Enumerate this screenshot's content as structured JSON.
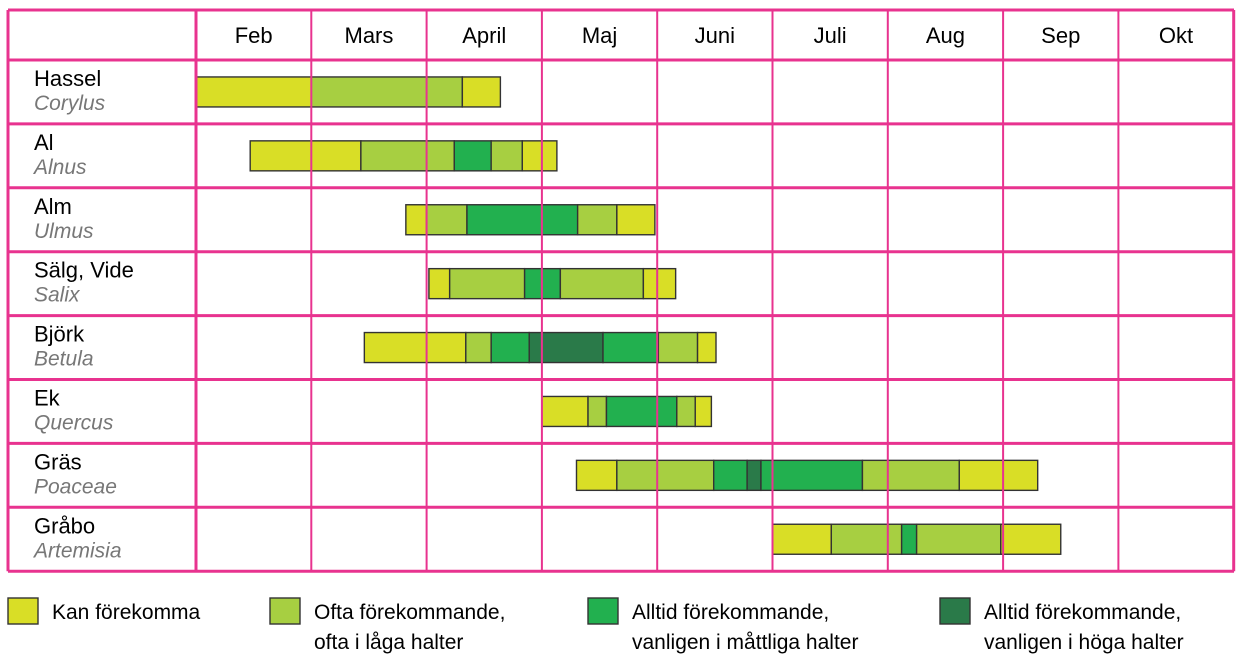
{
  "chart_data": {
    "type": "gantt",
    "months": [
      "Feb",
      "Mars",
      "April",
      "Maj",
      "Juni",
      "Juli",
      "Aug",
      "Sep",
      "Okt"
    ],
    "levels": [
      {
        "id": "kan",
        "label_lines": [
          "Kan förekomma"
        ],
        "color": "#d9de26"
      },
      {
        "id": "ofta",
        "label_lines": [
          "Ofta förekommande,",
          "ofta i låga halter"
        ],
        "color": "#a7cf41"
      },
      {
        "id": "alltid",
        "label_lines": [
          "Alltid förekommande,",
          "vanligen i måttliga halter"
        ],
        "color": "#22b04f"
      },
      {
        "id": "hoga",
        "label_lines": [
          "Alltid förekommande,",
          "vanligen i höga halter"
        ],
        "color": "#2a7a49"
      }
    ],
    "rows": [
      {
        "name": "Hassel",
        "latin": "Corylus",
        "segments": [
          {
            "start": 0.0,
            "end": 1.0,
            "level": "kan"
          },
          {
            "start": 1.0,
            "end": 2.31,
            "level": "ofta"
          },
          {
            "start": 2.31,
            "end": 2.64,
            "level": "kan"
          }
        ]
      },
      {
        "name": "Al",
        "latin": "Alnus",
        "segments": [
          {
            "start": 0.47,
            "end": 1.43,
            "level": "kan"
          },
          {
            "start": 1.43,
            "end": 2.24,
            "level": "ofta"
          },
          {
            "start": 2.24,
            "end": 2.56,
            "level": "alltid"
          },
          {
            "start": 2.56,
            "end": 2.83,
            "level": "ofta"
          },
          {
            "start": 2.83,
            "end": 3.13,
            "level": "kan"
          }
        ]
      },
      {
        "name": "Alm",
        "latin": "Ulmus",
        "segments": [
          {
            "start": 1.82,
            "end": 2.0,
            "level": "kan"
          },
          {
            "start": 2.0,
            "end": 2.35,
            "level": "ofta"
          },
          {
            "start": 2.35,
            "end": 3.31,
            "level": "alltid"
          },
          {
            "start": 3.31,
            "end": 3.65,
            "level": "ofta"
          },
          {
            "start": 3.65,
            "end": 3.98,
            "level": "kan"
          }
        ]
      },
      {
        "name": "Sälg, Vide",
        "latin": "Salix",
        "segments": [
          {
            "start": 2.02,
            "end": 2.2,
            "level": "kan"
          },
          {
            "start": 2.2,
            "end": 2.85,
            "level": "ofta"
          },
          {
            "start": 2.85,
            "end": 3.16,
            "level": "alltid"
          },
          {
            "start": 3.16,
            "end": 3.88,
            "level": "ofta"
          },
          {
            "start": 3.88,
            "end": 4.16,
            "level": "kan"
          }
        ]
      },
      {
        "name": "Björk",
        "latin": "Betula",
        "segments": [
          {
            "start": 1.46,
            "end": 2.34,
            "level": "kan"
          },
          {
            "start": 2.34,
            "end": 2.56,
            "level": "ofta"
          },
          {
            "start": 2.56,
            "end": 2.89,
            "level": "alltid"
          },
          {
            "start": 2.89,
            "end": 3.53,
            "level": "hoga"
          },
          {
            "start": 3.53,
            "end": 4.01,
            "level": "alltid"
          },
          {
            "start": 4.01,
            "end": 4.35,
            "level": "ofta"
          },
          {
            "start": 4.35,
            "end": 4.51,
            "level": "kan"
          }
        ]
      },
      {
        "name": "Ek",
        "latin": "Quercus",
        "segments": [
          {
            "start": 3.0,
            "end": 3.4,
            "level": "kan"
          },
          {
            "start": 3.4,
            "end": 3.56,
            "level": "ofta"
          },
          {
            "start": 3.56,
            "end": 4.17,
            "level": "alltid"
          },
          {
            "start": 4.17,
            "end": 4.33,
            "level": "ofta"
          },
          {
            "start": 4.33,
            "end": 4.47,
            "level": "kan"
          }
        ]
      },
      {
        "name": "Gräs",
        "latin": "Poaceae",
        "segments": [
          {
            "start": 3.3,
            "end": 3.65,
            "level": "kan"
          },
          {
            "start": 3.65,
            "end": 4.49,
            "level": "ofta"
          },
          {
            "start": 4.49,
            "end": 4.78,
            "level": "alltid"
          },
          {
            "start": 4.78,
            "end": 4.9,
            "level": "hoga"
          },
          {
            "start": 4.9,
            "end": 5.78,
            "level": "alltid"
          },
          {
            "start": 5.78,
            "end": 6.62,
            "level": "ofta"
          },
          {
            "start": 6.62,
            "end": 7.3,
            "level": "kan"
          }
        ]
      },
      {
        "name": "Gråbo",
        "latin": "Artemisia",
        "segments": [
          {
            "start": 5.0,
            "end": 5.51,
            "level": "kan"
          },
          {
            "start": 5.51,
            "end": 6.12,
            "level": "ofta"
          },
          {
            "start": 6.12,
            "end": 6.25,
            "level": "alltid"
          },
          {
            "start": 6.25,
            "end": 6.98,
            "level": "ofta"
          },
          {
            "start": 6.98,
            "end": 7.5,
            "level": "kan"
          }
        ]
      }
    ]
  }
}
